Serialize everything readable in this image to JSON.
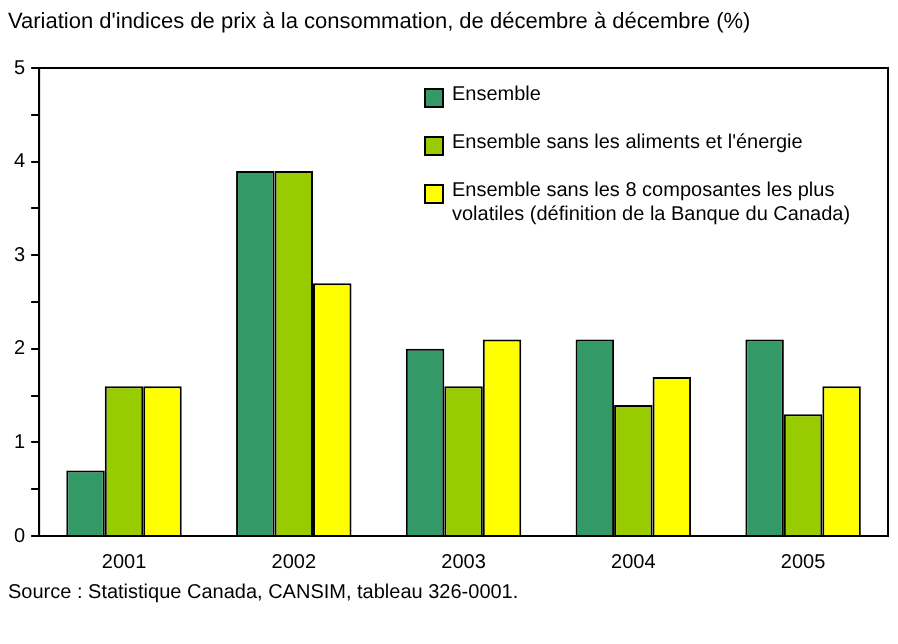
{
  "chart_data": {
    "type": "bar",
    "title": "Variation d'indices de prix à la consommation, de décembre à décembre (%)",
    "categories": [
      "2001",
      "2002",
      "2003",
      "2004",
      "2005"
    ],
    "series": [
      {
        "name": "Ensemble",
        "color": "#339966",
        "values": [
          0.7,
          3.9,
          2.0,
          2.1,
          2.1
        ]
      },
      {
        "name": "Ensemble sans les aliments et l'énergie",
        "color": "#99cc00",
        "values": [
          1.6,
          3.9,
          1.6,
          1.4,
          1.3
        ]
      },
      {
        "name": "Ensemble sans les 8 composantes les plus volatiles (définition de la Banque du Canada)",
        "color": "#ffff00",
        "values": [
          1.6,
          2.7,
          2.1,
          1.7,
          1.6
        ]
      }
    ],
    "ylim": [
      0,
      5
    ],
    "yticks": [
      0,
      {
        "value": 0.5,
        "label": null
      },
      1,
      {
        "value": 1.5,
        "label": null
      },
      2,
      {
        "value": 2.5,
        "label": null
      },
      3,
      {
        "value": 3.5,
        "label": null
      },
      4,
      {
        "value": 4.5,
        "label": null
      },
      5
    ],
    "grid": false,
    "legend": "top right",
    "annotations": [
      "Source : Statistique Canada, CANSIM, tableau 326-0001."
    ]
  }
}
